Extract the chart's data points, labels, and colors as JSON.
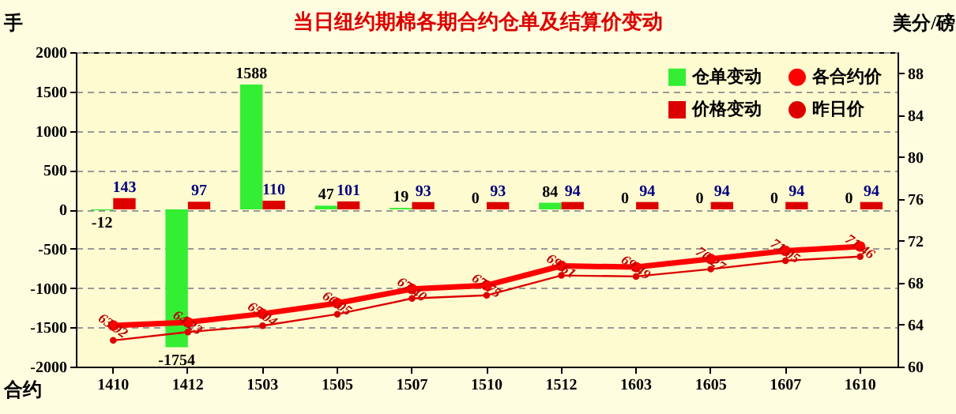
{
  "chart_data": {
    "type": "bar",
    "title": "当日纽约期棉各期合约仓单及结算价变动",
    "ylabel": "手",
    "y2label": "美分/磅",
    "xlabel": "合约",
    "categories": [
      "1410",
      "1412",
      "1503",
      "1505",
      "1507",
      "1510",
      "1512",
      "1603",
      "1605",
      "1607",
      "1610"
    ],
    "series": [
      {
        "name": "仓单变动",
        "color": "#33ee33",
        "values": [
          -12,
          -1754,
          1588,
          47,
          19,
          0,
          84,
          0,
          0,
          0,
          0
        ],
        "value_labels": [
          "-12",
          "-1754",
          "1588",
          "47",
          "19",
          "0",
          "84",
          "0",
          "0",
          "0",
          "0"
        ]
      },
      {
        "name": "价格变动",
        "color": "#dd0000",
        "values": [
          143,
          97,
          110,
          101,
          93,
          93,
          94,
          94,
          94,
          94,
          94
        ],
        "value_labels": [
          "143",
          "97",
          "110",
          "101",
          "93",
          "93",
          "94",
          "94",
          "94",
          "94",
          "94"
        ]
      },
      {
        "name": "各合约价",
        "type": "line",
        "axis": "y2",
        "color": "#ff0000",
        "marker": "circle",
        "line_style": "solid",
        "values": [
          63.92,
          64.23,
          65.04,
          66.05,
          67.4,
          67.75,
          69.61,
          69.49,
          70.27,
          71.05,
          71.46
        ],
        "value_labels": [
          "63.92",
          "64.23",
          "65.04",
          "66.05",
          "67.40",
          "67.75",
          "69.61",
          "69.49",
          "70.27",
          "71.05",
          "71.46"
        ]
      },
      {
        "name": "昨日价",
        "type": "line",
        "axis": "y2",
        "color": "#dd0000",
        "marker": "circle",
        "line_style": "solid",
        "values": [
          62.5,
          63.3,
          63.9,
          65.0,
          66.5,
          66.8,
          68.7,
          68.6,
          69.3,
          70.1,
          70.5
        ]
      }
    ],
    "ylim": [
      -2000,
      2000
    ],
    "yticks": [
      -2000,
      -1500,
      -1000,
      -500,
      0,
      500,
      1000,
      1500,
      2000
    ],
    "y2lim": [
      60,
      90
    ],
    "y2ticks": [
      60,
      64,
      68,
      72,
      76,
      80,
      84,
      88
    ],
    "grid": "y",
    "legend": "top right"
  }
}
